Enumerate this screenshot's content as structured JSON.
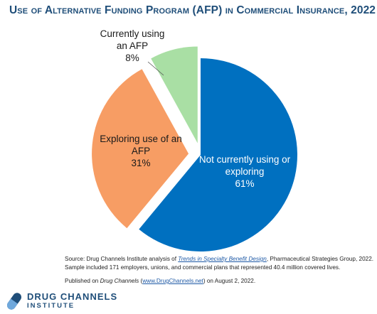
{
  "title": "Use of Alternative Funding Program (AFP) in Commercial Insurance, 2022",
  "chart_data": {
    "type": "pie",
    "title": "Use of Alternative Funding Program (AFP) in Commercial Insurance, 2022",
    "unit": "%",
    "slices": [
      {
        "label": "Not currently using or exploring",
        "value": 61,
        "display": "61%",
        "color": "#0070c0",
        "exploded": false
      },
      {
        "label": "Exploring use of an AFP",
        "value": 31,
        "display": "31%",
        "color": "#f79d64",
        "exploded": true
      },
      {
        "label": "Currently using an AFP",
        "value": 8,
        "display": "8%",
        "color": "#a9dfa4",
        "exploded": true
      }
    ]
  },
  "source": {
    "prefix": "Source: Drug Channels Institute analysis of ",
    "link_text": "Trends in Specialty Benefit Design",
    "suffix": ", Pharmaceutical Strategies Group, 2022. Sample included 171 employers, unions, and commercial plans that represented 40.4 million covered lives."
  },
  "published": {
    "prefix": "Published on ",
    "name": "Drug Channels",
    "open_paren": " (",
    "link_text": "www.DrugChannels.net",
    "suffix": ") on August 2, 2022."
  },
  "logo": {
    "line1": "DRUG CHANNELS",
    "line2": "INSTITUTE"
  },
  "colors": {
    "title": "#1f4e79",
    "blue": "#0070c0",
    "orange": "#f79d64",
    "green": "#a9dfa4"
  }
}
